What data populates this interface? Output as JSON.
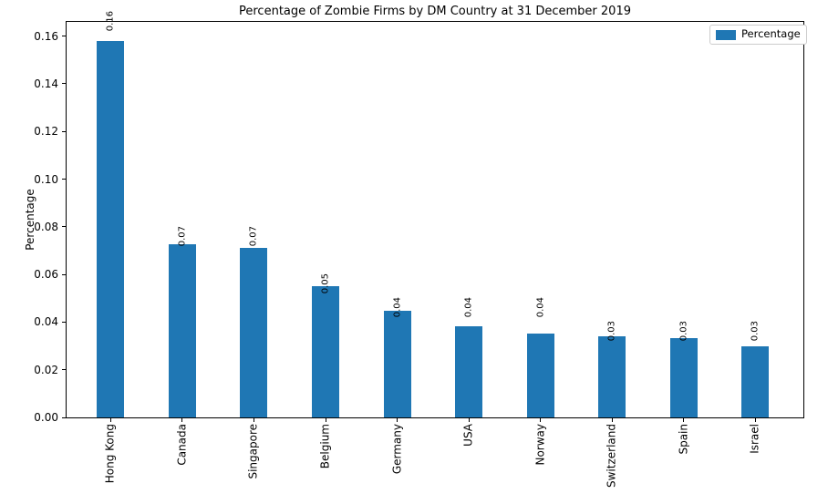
{
  "legend": {
    "label": "Percentage",
    "swatch_color": "#1f77b4"
  },
  "chart_data": {
    "type": "bar",
    "title": "Percentage of Zombie Firms by DM Country at 31 December 2019",
    "categories": [
      "Hong Kong",
      "Canada",
      "Singapore",
      "Belgium",
      "Germany",
      "USA",
      "Norway",
      "Switzerland",
      "Spain",
      "Israel"
    ],
    "values": [
      0.158,
      0.0725,
      0.0713,
      0.0549,
      0.0446,
      0.0381,
      0.0351,
      0.0341,
      0.0332,
      0.0297
    ],
    "bar_labels": [
      "0.16",
      "0.07",
      "0.07",
      "0.05",
      "0.04",
      "0.04",
      "0.04",
      "0.03",
      "0.03",
      "0.03"
    ],
    "series": [
      {
        "name": "Percentage",
        "color": "#1f77b4"
      }
    ],
    "xlabel": "",
    "ylabel": "Percentage",
    "ylim": [
      0,
      0.166
    ],
    "ytick_labels": [
      "0.00",
      "0.02",
      "0.04",
      "0.06",
      "0.08",
      "0.10",
      "0.12",
      "0.14",
      "0.16"
    ],
    "bar_label_rotation": 90,
    "xtick_rotation": 90,
    "legend_position": "upper right",
    "grid": false,
    "background_color": "#ffffff",
    "spine_color": "#000000"
  }
}
